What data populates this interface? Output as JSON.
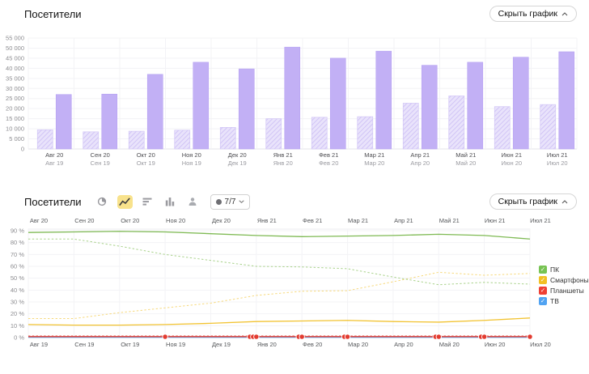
{
  "top_section": {
    "title": "Посетители",
    "toggle_button": {
      "label": "Скрыть график"
    }
  },
  "bottom_section": {
    "title": "Посетители",
    "toolbar": {
      "view_buttons": [
        {
          "icon": "pie-chart-icon",
          "selected": false
        },
        {
          "icon": "line-chart-icon",
          "selected": true
        },
        {
          "icon": "horizontal-bar-chart-icon",
          "selected": false
        },
        {
          "icon": "column-chart-icon",
          "selected": false
        },
        {
          "icon": "user-segments-icon",
          "selected": false
        }
      ],
      "segments_dropdown": {
        "label": "7/7"
      }
    },
    "toggle_button": {
      "label": "Скрыть график"
    }
  },
  "chart_data": [
    {
      "type": "bar",
      "title": "Посетители",
      "ylabel": "",
      "ylim": [
        0,
        55000
      ],
      "y_tick_step": 5000,
      "y_tick_labels": [
        "0",
        "5 000",
        "10 000",
        "15 000",
        "20 000",
        "25 000",
        "30 000",
        "35 000",
        "40 000",
        "45 000",
        "50 000",
        "55 000"
      ],
      "categories_current": [
        "Авг 20",
        "Сен 20",
        "Окт 20",
        "Ноя 20",
        "Дек 20",
        "Янв 21",
        "Фев 21",
        "Мар 21",
        "Апр 21",
        "Май 21",
        "Июн 21",
        "Июл 21"
      ],
      "categories_previous": [
        "Авг 19",
        "Сен 19",
        "Окт 19",
        "Ноя 19",
        "Дек 19",
        "Янв 20",
        "Фев 20",
        "Мар 20",
        "Апр 20",
        "Май 20",
        "Июн 20",
        "Июл 20"
      ],
      "grid": true,
      "series": [
        {
          "name": "previous-period",
          "style": "hatched",
          "color": "#e9e3fb",
          "stripe_color": "#cbbdf5",
          "values": [
            9500,
            8500,
            8800,
            9300,
            10700,
            15000,
            15700,
            16000,
            22700,
            26300,
            21000,
            22000
          ]
        },
        {
          "name": "current-period",
          "style": "solid",
          "color": "#c2b0f5",
          "values": [
            27000,
            27200,
            37000,
            43000,
            39700,
            50500,
            45000,
            48500,
            41500,
            43000,
            45500,
            48200
          ]
        }
      ]
    },
    {
      "type": "line",
      "title": "Посетители",
      "ylim": [
        0,
        92
      ],
      "y_tick_step": 10,
      "y_tick_labels": [
        "0 %",
        "10 %",
        "20 %",
        "30 %",
        "40 %",
        "50 %",
        "60 %",
        "70 %",
        "80 %",
        "90 %"
      ],
      "x_labels_top": [
        "Авг 20",
        "Сен 20",
        "Окт 20",
        "Ноя 20",
        "Дек 20",
        "Янв 21",
        "Фев 21",
        "Мар 21",
        "Апр 21",
        "Май 21",
        "Июн 21",
        "Июл 21"
      ],
      "x_labels_bottom": [
        "Авг 19",
        "Сен 19",
        "Окт 19",
        "Ноя 19",
        "Дек 19",
        "Янв 20",
        "Фев 20",
        "Мар 20",
        "Апр 20",
        "Май 20",
        "Июн 20",
        "Июл 20"
      ],
      "grid": true,
      "legend_position": "right",
      "series": [
        {
          "name": "ПК",
          "period": "current",
          "style": "solid",
          "color": "#7fba54",
          "values": [
            88.5,
            89,
            89.5,
            89,
            87.5,
            86,
            85,
            85.5,
            86,
            87,
            86,
            83
          ]
        },
        {
          "name": "ПК",
          "period": "previous",
          "style": "dashed",
          "color": "#a9d28b",
          "values": [
            83,
            83,
            77,
            70,
            65,
            60,
            59.5,
            58,
            51,
            44.5,
            46.5,
            45
          ]
        },
        {
          "name": "Смартфоны",
          "period": "current",
          "style": "solid",
          "color": "#f2c331",
          "values": [
            11,
            10.5,
            10.5,
            11,
            12,
            13.5,
            14,
            14.5,
            13.5,
            13,
            14.5,
            16.5
          ]
        },
        {
          "name": "Смартфоны",
          "period": "previous",
          "style": "dashed",
          "color": "#f7d97c",
          "values": [
            16,
            16,
            21,
            25,
            29,
            35.5,
            39,
            39.5,
            47,
            55,
            52.5,
            54
          ]
        },
        {
          "name": "Планшеты",
          "period": "current",
          "style": "solid",
          "color": "#e23b30",
          "values": [
            0.8,
            0.8,
            0.8,
            0.8,
            0.8,
            0.8,
            0.8,
            0.8,
            0.8,
            0.8,
            0.8,
            0.8
          ]
        },
        {
          "name": "Планшеты",
          "period": "previous",
          "style": "dashed",
          "color": "#f0948c",
          "values": [
            1.5,
            1.5,
            1.5,
            1.5,
            1.5,
            1.5,
            1.5,
            1.5,
            1.5,
            1.5,
            1.5,
            1.5
          ]
        },
        {
          "name": "ТВ",
          "period": "current",
          "style": "solid",
          "color": "#53a4f0",
          "values": [
            0.3,
            0.3,
            0.3,
            0.3,
            0.3,
            0.3,
            0.3,
            0.3,
            0.3,
            0.3,
            0.3,
            0.3
          ]
        }
      ],
      "legend": [
        {
          "label": "ПК",
          "color": "#77c353"
        },
        {
          "label": "Смартфоны",
          "color": "#f2c024"
        },
        {
          "label": "Планшеты",
          "color": "#ef4034"
        },
        {
          "label": "ТВ",
          "color": "#51a3f2"
        }
      ],
      "markers": [
        {
          "x_index": 3,
          "count": 1
        },
        {
          "x_index": 5,
          "count": 3
        },
        {
          "x_index": 6,
          "count": 2
        },
        {
          "x_index": 7,
          "count": 2
        },
        {
          "x_index": 9,
          "count": 2
        },
        {
          "x_index": 10,
          "count": 2
        },
        {
          "x_index": 11,
          "count": 1
        }
      ],
      "marker_color": "#e23b30"
    }
  ]
}
